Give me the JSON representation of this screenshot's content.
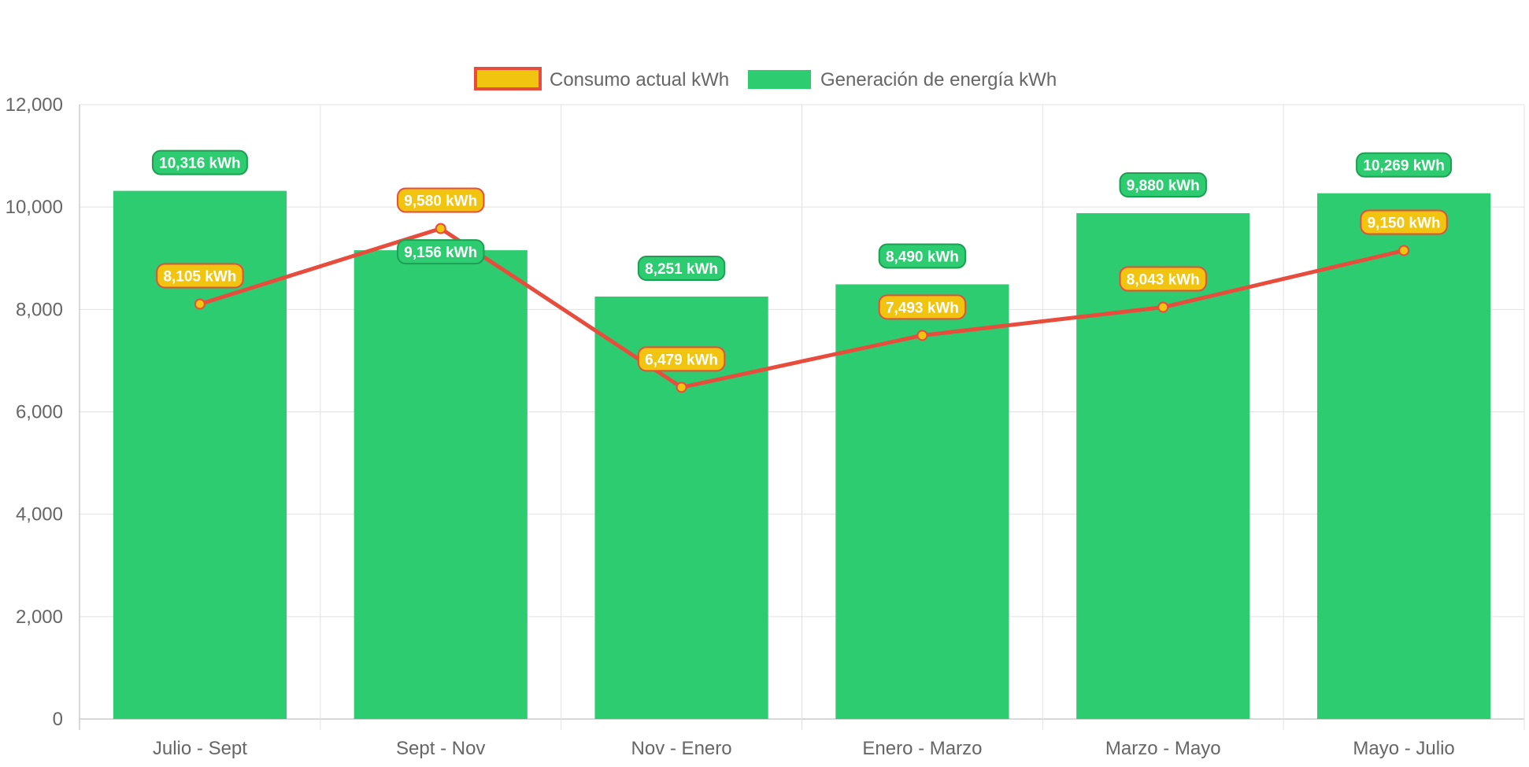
{
  "chart_data": {
    "type": "bar",
    "title": "",
    "xlabel": "",
    "ylabel": "",
    "categories": [
      "Julio - Sept",
      "Sept - Nov",
      "Nov - Enero",
      "Enero - Marzo",
      "Marzo - Mayo",
      "Mayo - Julio"
    ],
    "ylim": [
      0,
      12000
    ],
    "yticks": [
      0,
      2000,
      4000,
      6000,
      8000,
      10000,
      12000
    ],
    "yticks_labels": [
      "0",
      "2,000",
      "4,000",
      "6,000",
      "8,000",
      "10,000",
      "12,000"
    ],
    "grid": true,
    "legend_position": "top",
    "series": [
      {
        "name": "Consumo actual kWh",
        "type": "line",
        "color": "#e74c3c",
        "point_color": "#f1c40f",
        "values": [
          8105,
          9580,
          6479,
          7493,
          8043,
          9150
        ],
        "labels": [
          "8,105 kWh",
          "9,580 kWh",
          "6,479 kWh",
          "7,493 kWh",
          "8,043 kWh",
          "9,150 kWh"
        ]
      },
      {
        "name": "Generación de energía kWh",
        "type": "bar",
        "color": "#2ecc71",
        "values": [
          10316,
          9156,
          8251,
          8490,
          9880,
          10269
        ],
        "labels": [
          "10,316 kWh",
          "9,156 kWh",
          "8,251 kWh",
          "8,490 kWh",
          "9,880 kWh",
          "10,269 kWh"
        ]
      }
    ]
  }
}
